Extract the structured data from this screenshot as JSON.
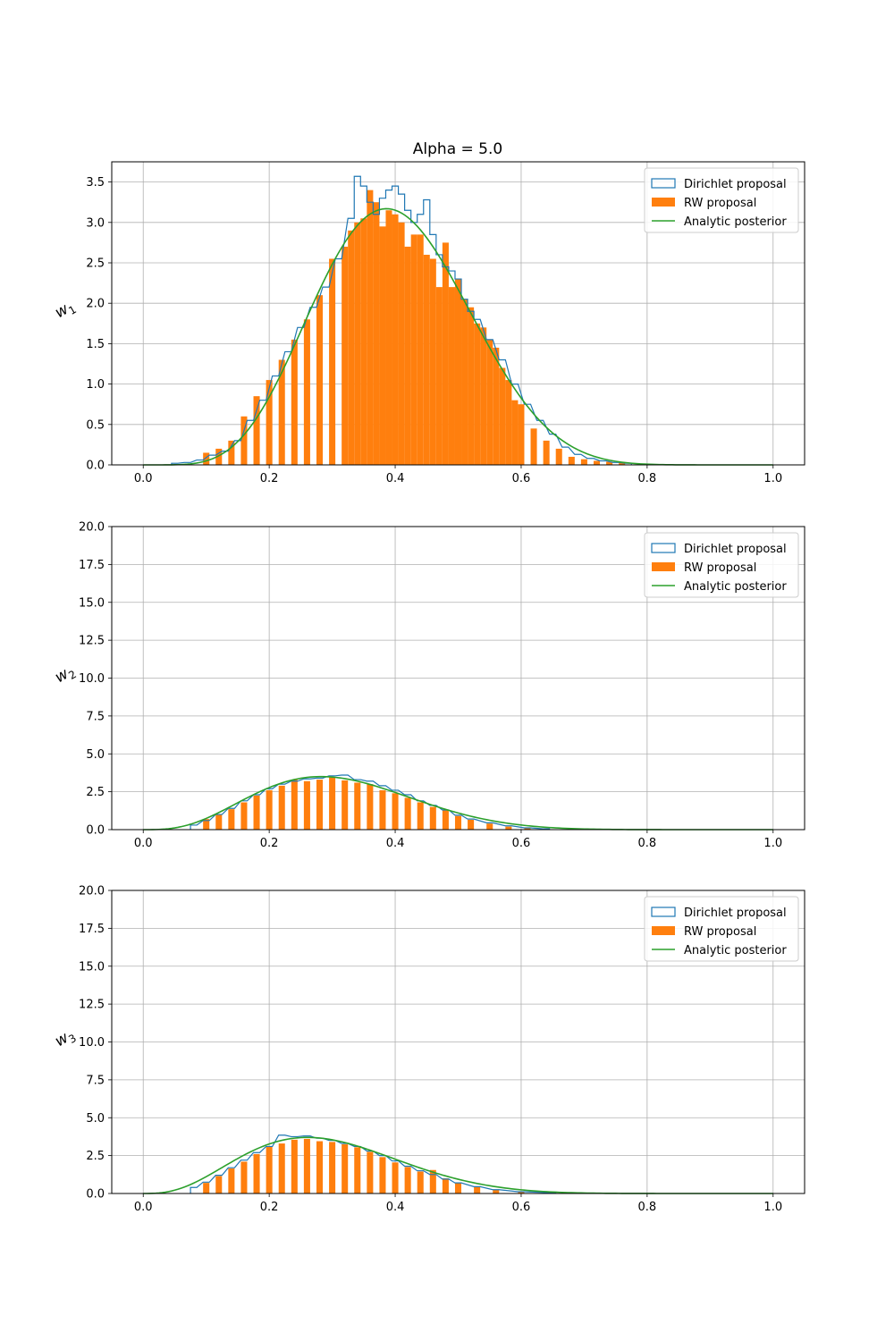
{
  "figure_title": "Alpha = 5.0",
  "colors": {
    "dirichlet": "#1f77b4",
    "rw": "#ff7f0e",
    "analytic": "#2ca02c",
    "grid": "#b0b0b0"
  },
  "legend": {
    "dirichlet_label": "Dirichlet proposal",
    "rw_label": "RW proposal",
    "analytic_label": "Analytic posterior"
  },
  "chart_data": [
    {
      "type": "histogram",
      "title": "Alpha = 5.0",
      "ylabel_base": "w",
      "ylabel_sub": "1",
      "xlim": [
        -0.05,
        1.05
      ],
      "ylim": [
        0,
        3.75
      ],
      "xticks": [
        "0.0",
        "0.2",
        "0.4",
        "0.6",
        "0.8",
        "1.0"
      ],
      "yticks": [
        "0.0",
        "0.5",
        "1.0",
        "1.5",
        "2.0",
        "2.5",
        "3.0",
        "3.5"
      ],
      "grid": true,
      "legend_position": "top-right",
      "analytic_posterior": {
        "a": 6.6,
        "b": 9.9,
        "peak_x": 0.39,
        "peak_y": 3.17
      },
      "bin_width": 0.01,
      "dirichlet_proposal": [
        [
          0.05,
          0.02
        ],
        [
          0.07,
          0.03
        ],
        [
          0.09,
          0.06
        ],
        [
          0.11,
          0.12
        ],
        [
          0.13,
          0.17
        ],
        [
          0.15,
          0.3
        ],
        [
          0.17,
          0.55
        ],
        [
          0.19,
          0.8
        ],
        [
          0.21,
          1.1
        ],
        [
          0.23,
          1.4
        ],
        [
          0.25,
          1.7
        ],
        [
          0.27,
          1.95
        ],
        [
          0.29,
          2.2
        ],
        [
          0.31,
          2.55
        ],
        [
          0.33,
          3.05
        ],
        [
          0.34,
          3.57
        ],
        [
          0.35,
          3.45
        ],
        [
          0.36,
          3.25
        ],
        [
          0.37,
          3.1
        ],
        [
          0.38,
          3.3
        ],
        [
          0.39,
          3.4
        ],
        [
          0.4,
          3.45
        ],
        [
          0.41,
          3.35
        ],
        [
          0.42,
          3.15
        ],
        [
          0.43,
          3.0
        ],
        [
          0.44,
          3.1
        ],
        [
          0.45,
          3.28
        ],
        [
          0.46,
          2.85
        ],
        [
          0.47,
          2.6
        ],
        [
          0.48,
          2.45
        ],
        [
          0.49,
          2.4
        ],
        [
          0.5,
          2.3
        ],
        [
          0.51,
          2.05
        ],
        [
          0.52,
          1.9
        ],
        [
          0.53,
          1.8
        ],
        [
          0.55,
          1.55
        ],
        [
          0.57,
          1.3
        ],
        [
          0.59,
          1.0
        ],
        [
          0.61,
          0.75
        ],
        [
          0.63,
          0.55
        ],
        [
          0.65,
          0.38
        ],
        [
          0.67,
          0.22
        ],
        [
          0.69,
          0.13
        ],
        [
          0.71,
          0.08
        ],
        [
          0.73,
          0.05
        ],
        [
          0.75,
          0.03
        ],
        [
          0.77,
          0.02
        ]
      ],
      "rw_proposal": [
        [
          0.1,
          0.15
        ],
        [
          0.12,
          0.2
        ],
        [
          0.14,
          0.3
        ],
        [
          0.16,
          0.6
        ],
        [
          0.18,
          0.85
        ],
        [
          0.2,
          1.05
        ],
        [
          0.22,
          1.3
        ],
        [
          0.24,
          1.55
        ],
        [
          0.26,
          1.8
        ],
        [
          0.28,
          2.1
        ],
        [
          0.3,
          2.55
        ],
        [
          0.32,
          2.7
        ],
        [
          0.33,
          2.9
        ],
        [
          0.34,
          3.0
        ],
        [
          0.35,
          3.05
        ],
        [
          0.36,
          3.4
        ],
        [
          0.37,
          3.25
        ],
        [
          0.38,
          2.95
        ],
        [
          0.39,
          3.15
        ],
        [
          0.4,
          3.1
        ],
        [
          0.41,
          3.0
        ],
        [
          0.42,
          2.7
        ],
        [
          0.43,
          2.85
        ],
        [
          0.44,
          2.85
        ],
        [
          0.45,
          2.6
        ],
        [
          0.46,
          2.55
        ],
        [
          0.47,
          2.2
        ],
        [
          0.48,
          2.75
        ],
        [
          0.49,
          2.2
        ],
        [
          0.5,
          2.3
        ],
        [
          0.51,
          2.05
        ],
        [
          0.52,
          1.95
        ],
        [
          0.53,
          1.75
        ],
        [
          0.54,
          1.7
        ],
        [
          0.55,
          1.55
        ],
        [
          0.56,
          1.45
        ],
        [
          0.57,
          1.2
        ],
        [
          0.58,
          1.05
        ],
        [
          0.59,
          0.8
        ],
        [
          0.6,
          0.75
        ],
        [
          0.62,
          0.45
        ],
        [
          0.64,
          0.3
        ],
        [
          0.66,
          0.2
        ],
        [
          0.68,
          0.1
        ],
        [
          0.7,
          0.07
        ],
        [
          0.72,
          0.05
        ],
        [
          0.74,
          0.04
        ],
        [
          0.76,
          0.03
        ]
      ]
    },
    {
      "type": "histogram",
      "ylabel_base": "w",
      "ylabel_sub": "2",
      "xlim": [
        -0.05,
        1.05
      ],
      "ylim": [
        0,
        20
      ],
      "xticks": [
        "0.0",
        "0.2",
        "0.4",
        "0.6",
        "0.8",
        "1.0"
      ],
      "yticks": [
        "0.0",
        "2.5",
        "5.0",
        "7.5",
        "10.0",
        "12.5",
        "15.0",
        "17.5",
        "20.0"
      ],
      "grid": true,
      "legend_position": "top-right",
      "analytic_posterior": {
        "a": 4.35,
        "b": 9.5,
        "peak_x": 0.29,
        "peak_y": 3.5
      },
      "bin_width": 0.01,
      "dirichlet_proposal": [
        [
          0.08,
          0.3
        ],
        [
          0.1,
          0.6
        ],
        [
          0.12,
          1.0
        ],
        [
          0.14,
          1.4
        ],
        [
          0.16,
          1.9
        ],
        [
          0.18,
          2.3
        ],
        [
          0.2,
          2.7
        ],
        [
          0.22,
          3.0
        ],
        [
          0.24,
          3.2
        ],
        [
          0.26,
          3.35
        ],
        [
          0.28,
          3.4
        ],
        [
          0.3,
          3.55
        ],
        [
          0.32,
          3.6
        ],
        [
          0.34,
          3.3
        ],
        [
          0.36,
          3.2
        ],
        [
          0.38,
          2.9
        ],
        [
          0.4,
          2.6
        ],
        [
          0.42,
          2.3
        ],
        [
          0.44,
          1.9
        ],
        [
          0.46,
          1.6
        ],
        [
          0.48,
          1.3
        ],
        [
          0.5,
          0.95
        ],
        [
          0.52,
          0.7
        ],
        [
          0.55,
          0.45
        ],
        [
          0.58,
          0.25
        ],
        [
          0.61,
          0.12
        ],
        [
          0.64,
          0.05
        ]
      ],
      "rw_proposal": [
        [
          0.1,
          0.7
        ],
        [
          0.12,
          1.0
        ],
        [
          0.14,
          1.35
        ],
        [
          0.16,
          1.8
        ],
        [
          0.18,
          2.25
        ],
        [
          0.2,
          2.6
        ],
        [
          0.22,
          2.9
        ],
        [
          0.24,
          3.3
        ],
        [
          0.26,
          3.2
        ],
        [
          0.28,
          3.3
        ],
        [
          0.3,
          3.45
        ],
        [
          0.32,
          3.25
        ],
        [
          0.34,
          3.1
        ],
        [
          0.36,
          3.0
        ],
        [
          0.38,
          2.6
        ],
        [
          0.4,
          2.4
        ],
        [
          0.42,
          2.1
        ],
        [
          0.44,
          1.8
        ],
        [
          0.46,
          1.5
        ],
        [
          0.48,
          1.3
        ],
        [
          0.5,
          0.9
        ],
        [
          0.52,
          0.65
        ],
        [
          0.55,
          0.4
        ],
        [
          0.58,
          0.2
        ],
        [
          0.61,
          0.1
        ]
      ]
    },
    {
      "type": "histogram",
      "ylabel_base": "w",
      "ylabel_sub": "3",
      "xlim": [
        -0.05,
        1.05
      ],
      "ylim": [
        0,
        20
      ],
      "xticks": [
        "0.0",
        "0.2",
        "0.4",
        "0.6",
        "0.8",
        "1.0"
      ],
      "yticks": [
        "0.0",
        "2.5",
        "5.0",
        "7.5",
        "10.0",
        "12.5",
        "15.0",
        "17.5",
        "20.0"
      ],
      "grid": true,
      "legend_position": "top-right",
      "analytic_posterior": {
        "a": 4.0,
        "b": 9.5,
        "peak_x": 0.27,
        "peak_y": 3.7
      },
      "bin_width": 0.01,
      "dirichlet_proposal": [
        [
          0.08,
          0.4
        ],
        [
          0.1,
          0.75
        ],
        [
          0.12,
          1.2
        ],
        [
          0.14,
          1.7
        ],
        [
          0.16,
          2.2
        ],
        [
          0.18,
          2.7
        ],
        [
          0.2,
          3.1
        ],
        [
          0.22,
          3.85
        ],
        [
          0.24,
          3.75
        ],
        [
          0.26,
          3.8
        ],
        [
          0.28,
          3.65
        ],
        [
          0.3,
          3.5
        ],
        [
          0.32,
          3.3
        ],
        [
          0.34,
          3.1
        ],
        [
          0.36,
          2.8
        ],
        [
          0.38,
          2.5
        ],
        [
          0.4,
          2.15
        ],
        [
          0.42,
          1.8
        ],
        [
          0.44,
          1.5
        ],
        [
          0.46,
          1.25
        ],
        [
          0.48,
          0.95
        ],
        [
          0.5,
          0.7
        ],
        [
          0.53,
          0.45
        ],
        [
          0.56,
          0.25
        ],
        [
          0.6,
          0.12
        ],
        [
          0.65,
          0.05
        ]
      ],
      "rw_proposal": [
        [
          0.1,
          0.7
        ],
        [
          0.12,
          1.15
        ],
        [
          0.14,
          1.65
        ],
        [
          0.16,
          2.1
        ],
        [
          0.18,
          2.6
        ],
        [
          0.2,
          3.1
        ],
        [
          0.22,
          3.3
        ],
        [
          0.24,
          3.55
        ],
        [
          0.26,
          3.6
        ],
        [
          0.28,
          3.45
        ],
        [
          0.3,
          3.4
        ],
        [
          0.32,
          3.25
        ],
        [
          0.34,
          3.05
        ],
        [
          0.36,
          2.75
        ],
        [
          0.38,
          2.4
        ],
        [
          0.4,
          2.05
        ],
        [
          0.42,
          1.75
        ],
        [
          0.44,
          1.45
        ],
        [
          0.46,
          1.55
        ],
        [
          0.48,
          1.0
        ],
        [
          0.5,
          0.7
        ],
        [
          0.53,
          0.45
        ],
        [
          0.56,
          0.25
        ],
        [
          0.6,
          0.1
        ]
      ]
    }
  ]
}
